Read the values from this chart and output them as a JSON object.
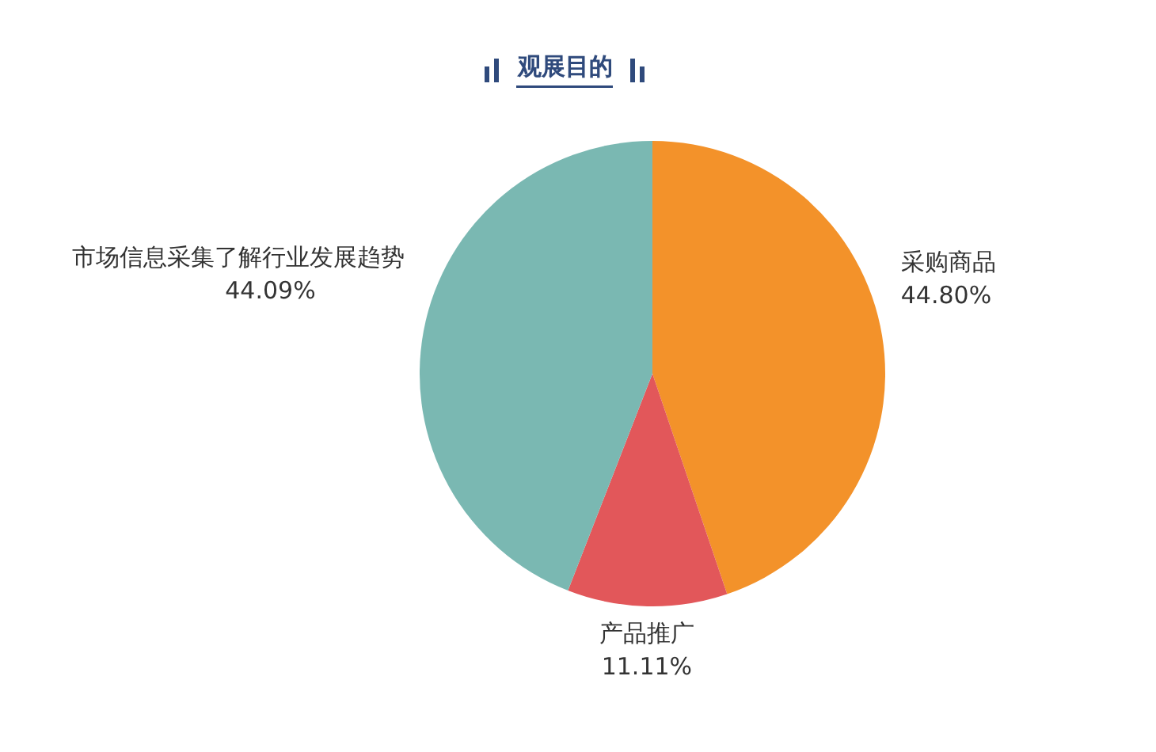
{
  "chart_data": {
    "type": "pie",
    "title": "观展目的",
    "categories": [
      "采购商品",
      "产品推广",
      "市场信息采集了解行业发展趋势"
    ],
    "values": [
      44.8,
      11.11,
      44.09
    ],
    "value_labels": [
      "44.80%",
      "11.11%",
      "44.09%"
    ],
    "colors": [
      "#f3922a",
      "#e2575a",
      "#7ab8b2"
    ]
  }
}
